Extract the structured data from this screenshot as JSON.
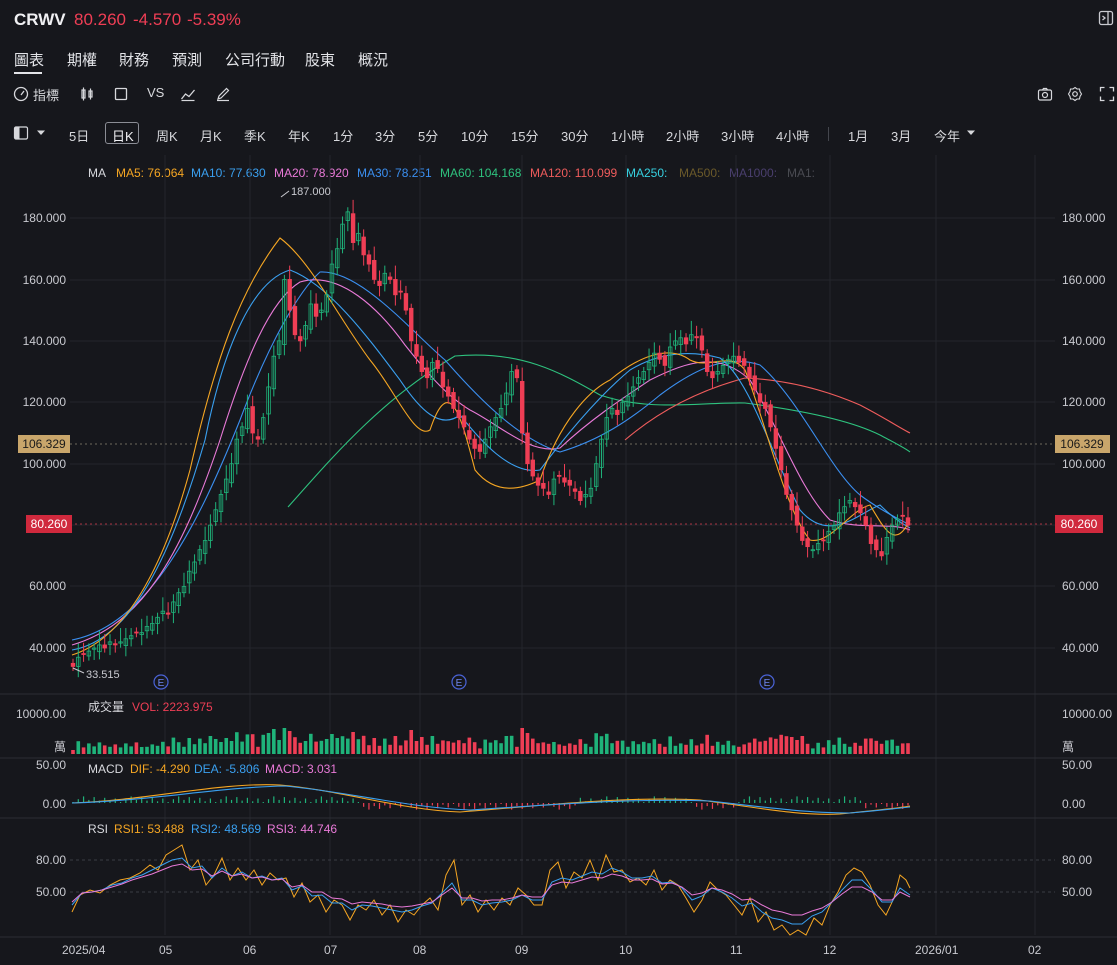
{
  "header": {
    "symbol": "CRWV",
    "price": "80.260",
    "change": "-4.570",
    "change_pct": "-5.39%",
    "down_color": "#ef3e55",
    "up_color": "#1fb37a"
  },
  "tabs": [
    "圖表",
    "期權",
    "財務",
    "預測",
    "公司行動",
    "股東",
    "概況"
  ],
  "tools": {
    "indicators": "指標",
    "vs": "VS"
  },
  "timeframes": [
    "5日",
    "日K",
    "周K",
    "月K",
    "季K",
    "年K",
    "1分",
    "3分",
    "5分",
    "10分",
    "15分",
    "30分",
    "1小時",
    "2小時",
    "3小時",
    "4小時",
    "1月",
    "3月",
    "今年"
  ],
  "ma_legend": {
    "title": "MA",
    "items": [
      {
        "label": "MA5: 76.064",
        "color": "#f5a623"
      },
      {
        "label": "MA10: 77.630",
        "color": "#3aa0f0"
      },
      {
        "label": "MA20: 78.920",
        "color": "#e97ad8"
      },
      {
        "label": "MA30: 78.251",
        "color": "#3b8ff0"
      },
      {
        "label": "MA60: 104.168",
        "color": "#2ec27e"
      },
      {
        "label": "MA120: 110.099",
        "color": "#ef5c5c"
      },
      {
        "label": "MA250:",
        "color": "#36d0e0"
      },
      {
        "label": "MA500:",
        "color": "#6b5a2a"
      },
      {
        "label": "MA1000:",
        "color": "#4a3f6e"
      },
      {
        "label": "MA1:",
        "color": "#4a4b52"
      }
    ]
  },
  "price_axis": {
    "ticks": [
      "180.000",
      "160.000",
      "140.000",
      "120.000",
      "100.000",
      "60.000",
      "40.000"
    ],
    "marker_ref": "106.329",
    "marker_last": "80.260",
    "high_label": "187.000",
    "low_label": "33.515",
    "earnings_label": "E"
  },
  "volume_panel": {
    "title": "成交量",
    "vol": "VOL: 2223.975",
    "axis_top": "10000.00",
    "axis_unit": "萬"
  },
  "macd_panel": {
    "title": "MACD",
    "dif": "DIF: -4.290",
    "dea": "DEA: -5.806",
    "macd": "MACD: 3.031",
    "ticks": [
      "50.00",
      "0.00"
    ]
  },
  "rsi_panel": {
    "title": "RSI",
    "rsi1": "RSI1: 53.488",
    "rsi2": "RSI2: 48.569",
    "rsi3": "RSI3: 44.746",
    "ticks": [
      "80.00",
      "50.00"
    ]
  },
  "x_axis": [
    "2025/04",
    "05",
    "06",
    "07",
    "08",
    "09",
    "10",
    "11",
    "12",
    "2026/01",
    "02"
  ],
  "chart_data": {
    "type": "candlestick",
    "ylim": [
      30,
      195
    ],
    "closes": [
      34,
      37,
      38,
      39,
      40,
      41,
      40,
      42,
      41,
      42,
      43,
      44,
      45,
      45,
      47,
      48,
      50,
      52,
      51,
      55,
      58,
      60,
      65,
      68,
      72,
      75,
      80,
      85,
      90,
      95,
      100,
      108,
      112,
      118,
      110,
      108,
      115,
      125,
      135,
      140,
      160,
      150,
      142,
      140,
      145,
      152,
      148,
      150,
      155,
      165,
      170,
      178,
      182,
      172,
      175,
      168,
      165,
      160,
      158,
      162,
      160,
      155,
      156,
      150,
      140,
      135,
      130,
      128,
      133,
      131,
      125,
      122,
      118,
      115,
      112,
      108,
      105,
      104,
      108,
      112,
      115,
      118,
      123,
      130,
      128,
      110,
      100,
      96,
      93,
      92,
      90,
      95,
      96,
      94,
      93,
      91,
      88,
      90,
      92,
      100,
      108,
      115,
      118,
      116,
      120,
      122,
      125,
      128,
      130,
      133,
      136,
      134,
      132,
      138,
      140,
      141,
      139,
      142,
      141,
      137,
      130,
      128,
      130,
      132,
      134,
      135,
      133,
      132,
      128,
      124,
      120,
      118,
      112,
      105,
      98,
      90,
      85,
      80,
      75,
      73,
      72,
      74,
      75,
      78,
      80,
      84,
      86,
      88,
      86,
      84,
      80,
      74,
      72,
      70,
      76,
      80,
      82,
      83,
      80
    ]
  }
}
